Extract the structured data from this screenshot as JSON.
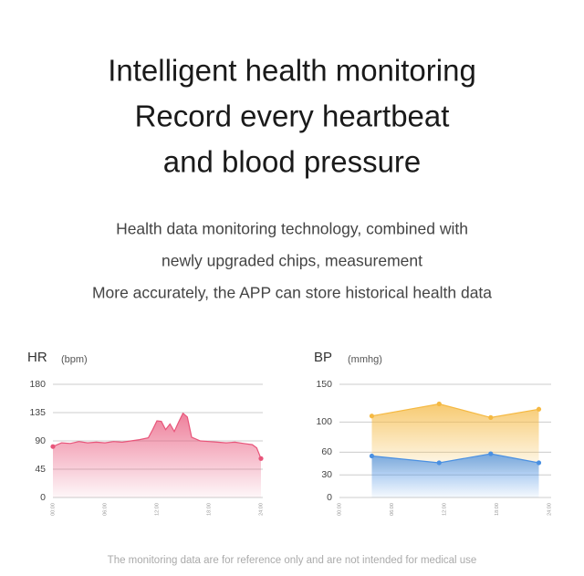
{
  "header": {
    "title_lines": [
      "Intelligent health monitoring",
      "Record every heartbeat",
      "and blood pressure"
    ],
    "subtitle_lines": [
      "Health data monitoring technology, combined with",
      "newly upgraded chips, measurement",
      "More accurately, the APP can store historical health data"
    ]
  },
  "chart_data": [
    {
      "type": "area",
      "y_label": "HR",
      "y_unit": "(bpm)",
      "x": [
        0,
        1,
        2,
        3,
        4,
        5,
        6,
        7,
        8,
        9,
        10,
        11,
        11.5,
        12,
        12.5,
        13,
        13.5,
        14,
        14.5,
        15,
        15.5,
        16,
        17,
        18,
        19,
        20,
        21,
        22,
        23,
        23.5,
        24
      ],
      "xlim": [
        0,
        24
      ],
      "xticks": [
        {
          "value": 0,
          "label": "00:00"
        },
        {
          "value": 6,
          "label": "06:00"
        },
        {
          "value": 12,
          "label": "12:00"
        },
        {
          "value": 18,
          "label": "18:00"
        },
        {
          "value": 24,
          "label": "24:00"
        }
      ],
      "ylim": [
        0,
        180
      ],
      "yticks": [
        0,
        45,
        90,
        135,
        180
      ],
      "grid": true,
      "markers": "ends",
      "series": [
        {
          "color": "#e8557a",
          "values": [
            81,
            87,
            86,
            89,
            87,
            88,
            87,
            89,
            88,
            90,
            92,
            95,
            108,
            122,
            121,
            108,
            117,
            105,
            120,
            134,
            128,
            96,
            90,
            89,
            88,
            87,
            88,
            86,
            84,
            79,
            62
          ]
        }
      ]
    },
    {
      "type": "area",
      "y_label": "BP",
      "y_unit": "(mmhg)",
      "x": [
        3.7,
        11.4,
        17.3,
        22.8
      ],
      "xlim": [
        0,
        24
      ],
      "xticks": [
        {
          "value": 0,
          "label": "00:00"
        },
        {
          "value": 6,
          "label": "06:00"
        },
        {
          "value": 12,
          "label": "12:00"
        },
        {
          "value": 18,
          "label": "18:00"
        },
        {
          "value": 24,
          "label": "24:00"
        }
      ],
      "ylim": [
        0,
        150
      ],
      "yticks": [
        0,
        30,
        60,
        100,
        150
      ],
      "grid": true,
      "markers": "all",
      "series": [
        {
          "color": "#f5b942",
          "values": [
            108,
            124,
            106,
            117
          ]
        },
        {
          "color": "#4a90e2",
          "values": [
            55,
            46,
            58,
            46
          ]
        }
      ]
    }
  ],
  "footer": "The monitoring data are for reference only and are not intended for medical use"
}
